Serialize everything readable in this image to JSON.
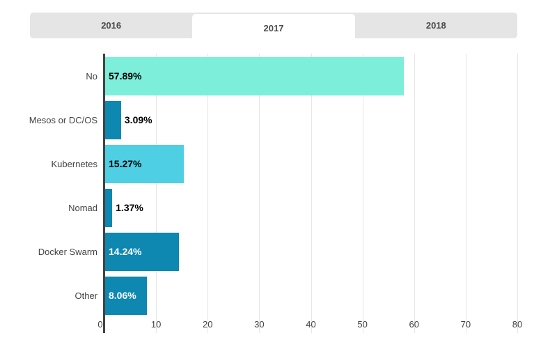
{
  "page": {
    "background": "#FFFFFF"
  },
  "tabs": {
    "items": [
      {
        "label": "2016",
        "selected": false
      },
      {
        "label": "2017",
        "selected": true
      },
      {
        "label": "2018",
        "selected": false
      }
    ],
    "bar_color": "#E5E5E5",
    "selected_color": "#FFFFFF",
    "text_color": "#4A4A4A"
  },
  "chart_data": {
    "type": "bar",
    "orientation": "horizontal",
    "title": "",
    "categories": [
      "No",
      "Mesos or DC/OS",
      "Kubernetes",
      "Nomad",
      "Docker Swarm",
      "Other"
    ],
    "values": [
      57.89,
      3.09,
      15.27,
      1.37,
      14.24,
      8.06
    ],
    "value_labels": [
      "57.89%",
      "3.09%",
      "15.27%",
      "1.37%",
      "14.24%",
      "8.06%"
    ],
    "bar_colors": [
      "#7CEED9",
      "#0E87B1",
      "#4FCFE4",
      "#0E87B1",
      "#0E87B1",
      "#0E87B1"
    ],
    "value_label_colors": [
      "#000000",
      "#000000",
      "#000000",
      "#000000",
      "#FFFFFF",
      "#FFFFFF"
    ],
    "value_label_inside": [
      true,
      false,
      true,
      false,
      true,
      true
    ],
    "x_ticks": [
      "0",
      "10",
      "20",
      "30",
      "40",
      "50",
      "60",
      "70",
      "80"
    ],
    "xlim": [
      0,
      80
    ],
    "grid": true,
    "legend": false,
    "axis_color": "#424242",
    "gridline_color": "#E6E6E6",
    "label_color": "#424242"
  }
}
